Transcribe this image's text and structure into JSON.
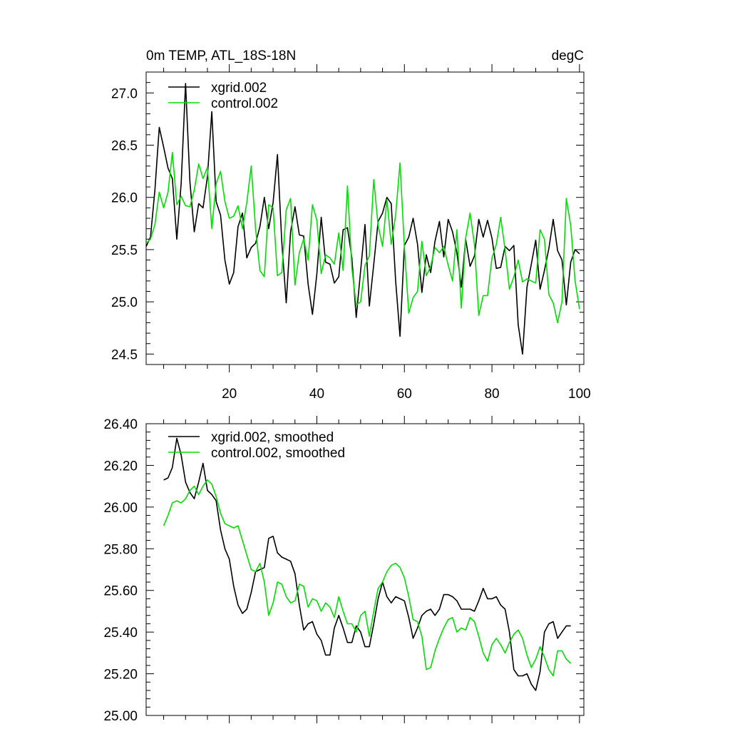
{
  "colors": {
    "xgrid": "#000000",
    "control": "#00e000"
  },
  "chart_data": [
    {
      "type": "line",
      "title_left": "0m TEMP, ATL_18S-18N",
      "title_right": "degC",
      "xlabel": "",
      "ylabel": "",
      "xlim": [
        1,
        101
      ],
      "ylim": [
        24.4,
        27.2
      ],
      "xticks": [
        20,
        40,
        60,
        80,
        100
      ],
      "yticks": [
        24.5,
        25.0,
        25.5,
        26.0,
        26.5,
        27.0
      ],
      "ytick_labels": [
        "24.5",
        "25.0",
        "25.5",
        "26.0",
        "26.5",
        "27.0"
      ],
      "x_start": 1,
      "legend_position": "top-left",
      "grid": false,
      "series": [
        {
          "name": "xgrid.002",
          "color_key": "xgrid",
          "values": [
            25.53,
            25.62,
            26.07,
            26.67,
            26.48,
            26.28,
            26.18,
            25.6,
            26.13,
            27.09,
            26.15,
            25.67,
            25.94,
            25.9,
            26.2,
            26.82,
            25.96,
            25.83,
            25.4,
            25.17,
            25.28,
            25.72,
            25.85,
            25.42,
            25.52,
            25.56,
            25.72,
            26.0,
            25.7,
            25.95,
            26.41,
            25.57,
            24.99,
            25.67,
            25.91,
            25.64,
            25.63,
            25.17,
            24.88,
            25.27,
            25.81,
            25.38,
            25.36,
            25.18,
            25.24,
            25.69,
            25.71,
            25.42,
            24.85,
            25.3,
            25.74,
            24.96,
            25.36,
            25.77,
            25.85,
            26.0,
            25.94,
            25.2,
            24.67,
            25.54,
            25.62,
            25.8,
            25.55,
            25.09,
            25.45,
            25.28,
            25.58,
            25.77,
            25.43,
            25.79,
            25.67,
            25.47,
            25.14,
            25.6,
            25.34,
            25.44,
            25.79,
            25.62,
            25.78,
            25.61,
            25.32,
            25.33,
            25.53,
            25.49,
            25.54,
            24.78,
            24.5,
            25.14,
            25.36,
            25.59,
            25.12,
            25.3,
            25.51,
            25.79,
            25.49,
            25.4,
            24.97,
            25.38,
            25.5,
            25.46
          ]
        },
        {
          "name": "control.002",
          "color_key": "control",
          "values": [
            25.56,
            25.6,
            25.74,
            26.05,
            25.9,
            26.05,
            26.43,
            25.93,
            26.01,
            25.92,
            25.91,
            26.07,
            26.32,
            26.18,
            26.29,
            25.7,
            26.13,
            26.25,
            25.96,
            25.8,
            25.82,
            25.92,
            25.7,
            25.95,
            26.3,
            25.7,
            25.3,
            25.24,
            25.93,
            25.9,
            25.25,
            25.28,
            25.88,
            25.99,
            25.16,
            25.47,
            25.6,
            25.4,
            25.93,
            25.78,
            25.27,
            25.45,
            25.42,
            25.36,
            25.66,
            25.3,
            26.11,
            25.32,
            24.97,
            25.0,
            25.35,
            25.44,
            26.17,
            25.73,
            25.53,
            25.98,
            25.55,
            25.83,
            26.33,
            25.52,
            24.89,
            25.04,
            25.1,
            25.58,
            25.25,
            25.34,
            25.52,
            25.47,
            25.53,
            25.35,
            25.2,
            25.69,
            24.94,
            25.61,
            25.85,
            25.55,
            24.87,
            25.06,
            25.06,
            25.42,
            25.55,
            25.81,
            25.5,
            25.12,
            25.24,
            25.4,
            25.19,
            25.22,
            25.2,
            25.18,
            25.69,
            25.6,
            25.07,
            24.99,
            24.8,
            25.0,
            25.99,
            25.73,
            25.2,
            24.93
          ]
        }
      ]
    },
    {
      "type": "line",
      "title_left": "",
      "title_right": "",
      "xlabel": "",
      "ylabel": "",
      "xlim": [
        1,
        101
      ],
      "ylim": [
        25.0,
        26.4
      ],
      "xticks": [
        20,
        40,
        60,
        80,
        100
      ],
      "yticks": [
        25.0,
        25.2,
        25.4,
        25.6,
        25.8,
        26.0,
        26.2,
        26.4
      ],
      "ytick_labels": [
        "25.00",
        "25.20",
        "25.40",
        "25.60",
        "25.80",
        "26.00",
        "26.20",
        "26.40"
      ],
      "x_start": 5,
      "legend_position": "top-left",
      "grid": false,
      "series": [
        {
          "name": "xgrid.002, smoothed",
          "color_key": "xgrid",
          "values": [
            26.13,
            26.14,
            26.19,
            26.33,
            26.25,
            26.12,
            26.07,
            26.04,
            26.12,
            26.21,
            26.08,
            26.06,
            26.03,
            25.89,
            25.8,
            25.75,
            25.62,
            25.53,
            25.49,
            25.51,
            25.59,
            25.69,
            25.7,
            25.71,
            25.85,
            25.86,
            25.78,
            25.76,
            25.75,
            25.74,
            25.68,
            25.53,
            25.41,
            25.44,
            25.45,
            25.39,
            25.36,
            25.29,
            25.29,
            25.42,
            25.48,
            25.42,
            25.35,
            25.35,
            25.43,
            25.4,
            25.33,
            25.33,
            25.44,
            25.56,
            25.64,
            25.57,
            25.54,
            25.57,
            25.56,
            25.55,
            25.47,
            25.37,
            25.42,
            25.48,
            25.5,
            25.51,
            25.48,
            25.51,
            25.58,
            25.58,
            25.57,
            25.55,
            25.51,
            25.51,
            25.51,
            25.5,
            25.55,
            25.61,
            25.56,
            25.56,
            25.57,
            25.53,
            25.51,
            25.4,
            25.22,
            25.19,
            25.19,
            25.2,
            25.15,
            25.12,
            25.21,
            25.4,
            25.44,
            25.45,
            25.37,
            25.4,
            25.43,
            25.43
          ]
        },
        {
          "name": "control.002, smoothed",
          "color_key": "control",
          "values": [
            25.91,
            25.96,
            26.02,
            26.03,
            26.02,
            26.04,
            26.08,
            26.1,
            26.06,
            26.1,
            26.13,
            26.11,
            26.05,
            25.97,
            25.92,
            25.91,
            25.9,
            25.91,
            25.84,
            25.77,
            25.7,
            25.69,
            25.73,
            25.64,
            25.48,
            25.54,
            25.64,
            25.63,
            25.57,
            25.54,
            25.55,
            25.63,
            25.62,
            25.52,
            25.56,
            25.55,
            25.5,
            25.54,
            25.52,
            25.47,
            25.57,
            25.5,
            25.44,
            25.44,
            25.4,
            25.48,
            25.5,
            25.38,
            25.5,
            25.61,
            25.64,
            25.69,
            25.72,
            25.73,
            25.71,
            25.66,
            25.57,
            25.46,
            25.45,
            25.38,
            25.22,
            25.23,
            25.31,
            25.37,
            25.42,
            25.46,
            25.47,
            25.4,
            25.42,
            25.41,
            25.47,
            25.45,
            25.38,
            25.3,
            25.26,
            25.34,
            25.37,
            25.34,
            25.3,
            25.35,
            25.39,
            25.41,
            25.37,
            25.29,
            25.23,
            25.27,
            25.33,
            25.28,
            25.22,
            25.19,
            25.31,
            25.31,
            25.27,
            25.25
          ]
        }
      ]
    }
  ]
}
